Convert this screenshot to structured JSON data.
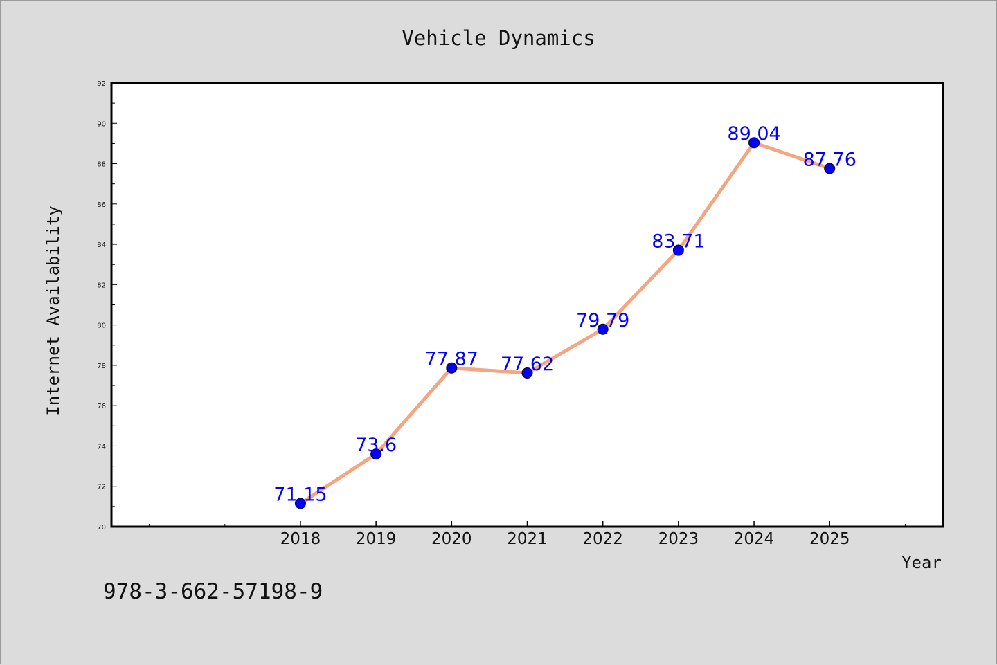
{
  "chart_data": {
    "type": "line",
    "title": "Vehicle Dynamics",
    "xlabel": "Year",
    "ylabel": "Internet Availability",
    "x": [
      2018,
      2019,
      2020,
      2021,
      2022,
      2023,
      2024,
      2025
    ],
    "x_tick_labels": [
      "2018",
      "2019",
      "2020",
      "2021",
      "2022",
      "2023",
      "2024",
      "2025"
    ],
    "xlim": [
      2015.5,
      2026.5
    ],
    "series": [
      {
        "values": [
          71.15,
          73.6,
          77.87,
          77.62,
          79.79,
          83.71,
          89.04,
          87.76
        ],
        "labels": [
          "71.15",
          "73.6",
          "77.87",
          "77.62",
          "79.79",
          "83.71",
          "89.04",
          "87.76"
        ],
        "line_color": "#f4a582",
        "marker_color": "#0000ff"
      }
    ],
    "ylim": [
      70,
      92
    ],
    "y_ticks": [
      70,
      72,
      74,
      76,
      78,
      80,
      82,
      84,
      86,
      88,
      90,
      92
    ],
    "y_tick_labels": [
      "70",
      "72",
      "74",
      "76",
      "78",
      "80",
      "82",
      "84",
      "86",
      "88",
      "90",
      "92"
    ],
    "grid": false,
    "legend": "none",
    "background": "#dcdcdc",
    "plot_background": "#ffffff",
    "label_color": "#0000ff"
  },
  "footer": {
    "isbn": "978-3-662-57198-9"
  }
}
